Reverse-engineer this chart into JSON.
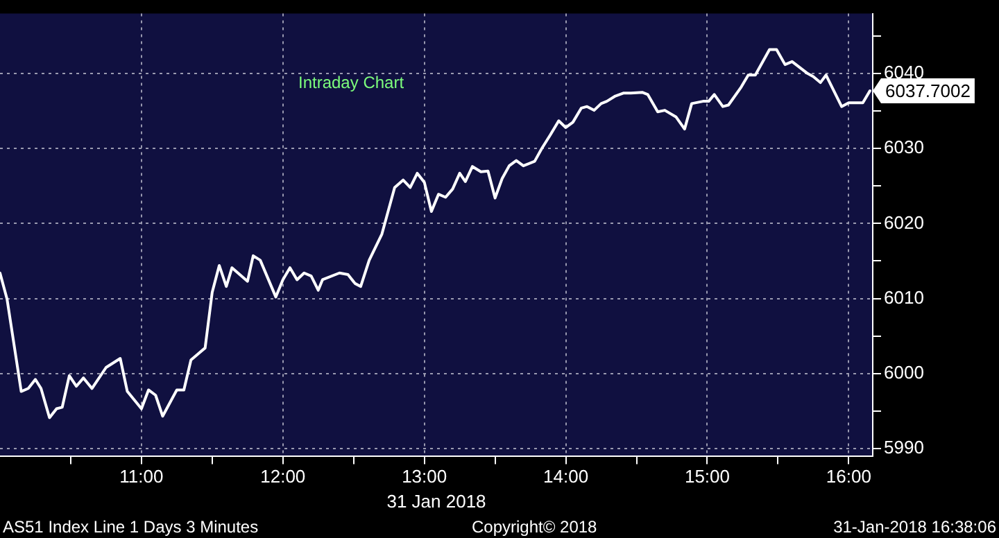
{
  "chart_data": {
    "type": "line",
    "title": "Intraday Chart",
    "xlabel": "31 Jan 2018",
    "x": [
      10.0,
      10.05,
      10.15,
      10.2,
      10.25,
      10.29,
      10.35,
      10.4,
      10.44,
      10.49,
      10.54,
      10.59,
      10.65,
      10.75,
      10.85,
      10.9,
      11.0,
      11.05,
      11.1,
      11.15,
      11.25,
      11.3,
      11.35,
      11.45,
      11.5,
      11.55,
      11.6,
      11.64,
      11.75,
      11.79,
      11.84,
      11.95,
      12.0,
      12.05,
      12.1,
      12.15,
      12.2,
      12.25,
      12.28,
      12.4,
      12.46,
      12.51,
      12.55,
      12.61,
      12.7,
      12.79,
      12.85,
      12.9,
      12.95,
      13.0,
      13.05,
      13.1,
      13.15,
      13.2,
      13.25,
      13.29,
      13.34,
      13.4,
      13.45,
      13.5,
      13.55,
      13.6,
      13.65,
      13.7,
      13.78,
      13.83,
      13.89,
      13.95,
      14.0,
      14.05,
      14.11,
      14.15,
      14.2,
      14.25,
      14.29,
      14.35,
      14.41,
      14.46,
      14.54,
      14.58,
      14.65,
      14.7,
      14.78,
      14.84,
      14.89,
      14.97,
      15.01,
      15.05,
      15.11,
      15.15,
      15.24,
      15.29,
      15.34,
      15.44,
      15.49,
      15.55,
      15.6,
      15.71,
      15.75,
      15.8,
      15.84,
      15.95,
      16.0,
      16.1,
      16.15
    ],
    "series": [
      {
        "color": "#ffffff",
        "values": [
          6013.4,
          6009.9,
          5997.6,
          5998.0,
          5999.2,
          5998.0,
          5994.1,
          5995.3,
          5995.5,
          5999.7,
          5998.3,
          5999.4,
          5998.0,
          6000.8,
          6002.0,
          5997.6,
          5995.3,
          5997.8,
          5997.1,
          5994.3,
          5997.8,
          5997.8,
          6001.8,
          6003.4,
          6010.8,
          6014.4,
          6011.6,
          6014.1,
          6012.3,
          6015.7,
          6015.1,
          6010.2,
          6012.5,
          6014.1,
          6012.5,
          6013.4,
          6013.0,
          6011.1,
          6012.5,
          6013.4,
          6013.2,
          6012.0,
          6011.6,
          6015.1,
          6018.6,
          6024.8,
          6025.8,
          6024.8,
          6026.7,
          6025.5,
          6021.6,
          6023.9,
          6023.5,
          6024.6,
          6026.7,
          6025.6,
          6027.6,
          6026.9,
          6027.0,
          6023.4,
          6026.0,
          6027.7,
          6028.4,
          6027.7,
          6028.3,
          6030.0,
          6031.8,
          6033.7,
          6032.8,
          6033.5,
          6035.4,
          6035.6,
          6035.1,
          6036.0,
          6036.3,
          6037.0,
          6037.4,
          6037.4,
          6037.5,
          6037.2,
          6034.9,
          6035.1,
          6034.2,
          6032.6,
          6036.0,
          6036.3,
          6036.3,
          6037.2,
          6035.6,
          6035.8,
          6038.2,
          6039.8,
          6039.8,
          6043.2,
          6043.2,
          6041.2,
          6041.6,
          6040.0,
          6039.6,
          6038.8,
          6039.8,
          6035.6,
          6036.1,
          6036.1,
          6037.7
        ]
      }
    ],
    "xlim": [
      10,
      16.17
    ],
    "xticks": [
      {
        "value": 10.5,
        "label": null
      },
      {
        "value": 11,
        "label": "11:00"
      },
      {
        "value": 11.5,
        "label": null
      },
      {
        "value": 12,
        "label": "12:00"
      },
      {
        "value": 12.5,
        "label": null
      },
      {
        "value": 13,
        "label": "13:00"
      },
      {
        "value": 13.5,
        "label": null
      },
      {
        "value": 14,
        "label": "14:00"
      },
      {
        "value": 14.5,
        "label": null
      },
      {
        "value": 15,
        "label": "15:00"
      },
      {
        "value": 15.5,
        "label": null
      },
      {
        "value": 16,
        "label": "16:00"
      }
    ],
    "ylim": [
      5989,
      6048
    ],
    "yticks": [
      5990,
      {
        "value": 5995,
        "label": null
      },
      6000,
      {
        "value": 6005,
        "label": null
      },
      6010,
      {
        "value": 6015,
        "label": null
      },
      6020,
      {
        "value": 6025,
        "label": null
      },
      6030,
      {
        "value": 6035,
        "label": null
      },
      6040,
      {
        "value": 6045,
        "label": null
      }
    ],
    "grid": true,
    "legend": false,
    "marker": "none",
    "line_style": "solid",
    "annotations": [
      "6037.7002",
      "AS51 Index Line 1 Days 3 Minutes",
      "Copyright© 2018",
      "31-Jan-2018 16:38:06"
    ]
  }
}
